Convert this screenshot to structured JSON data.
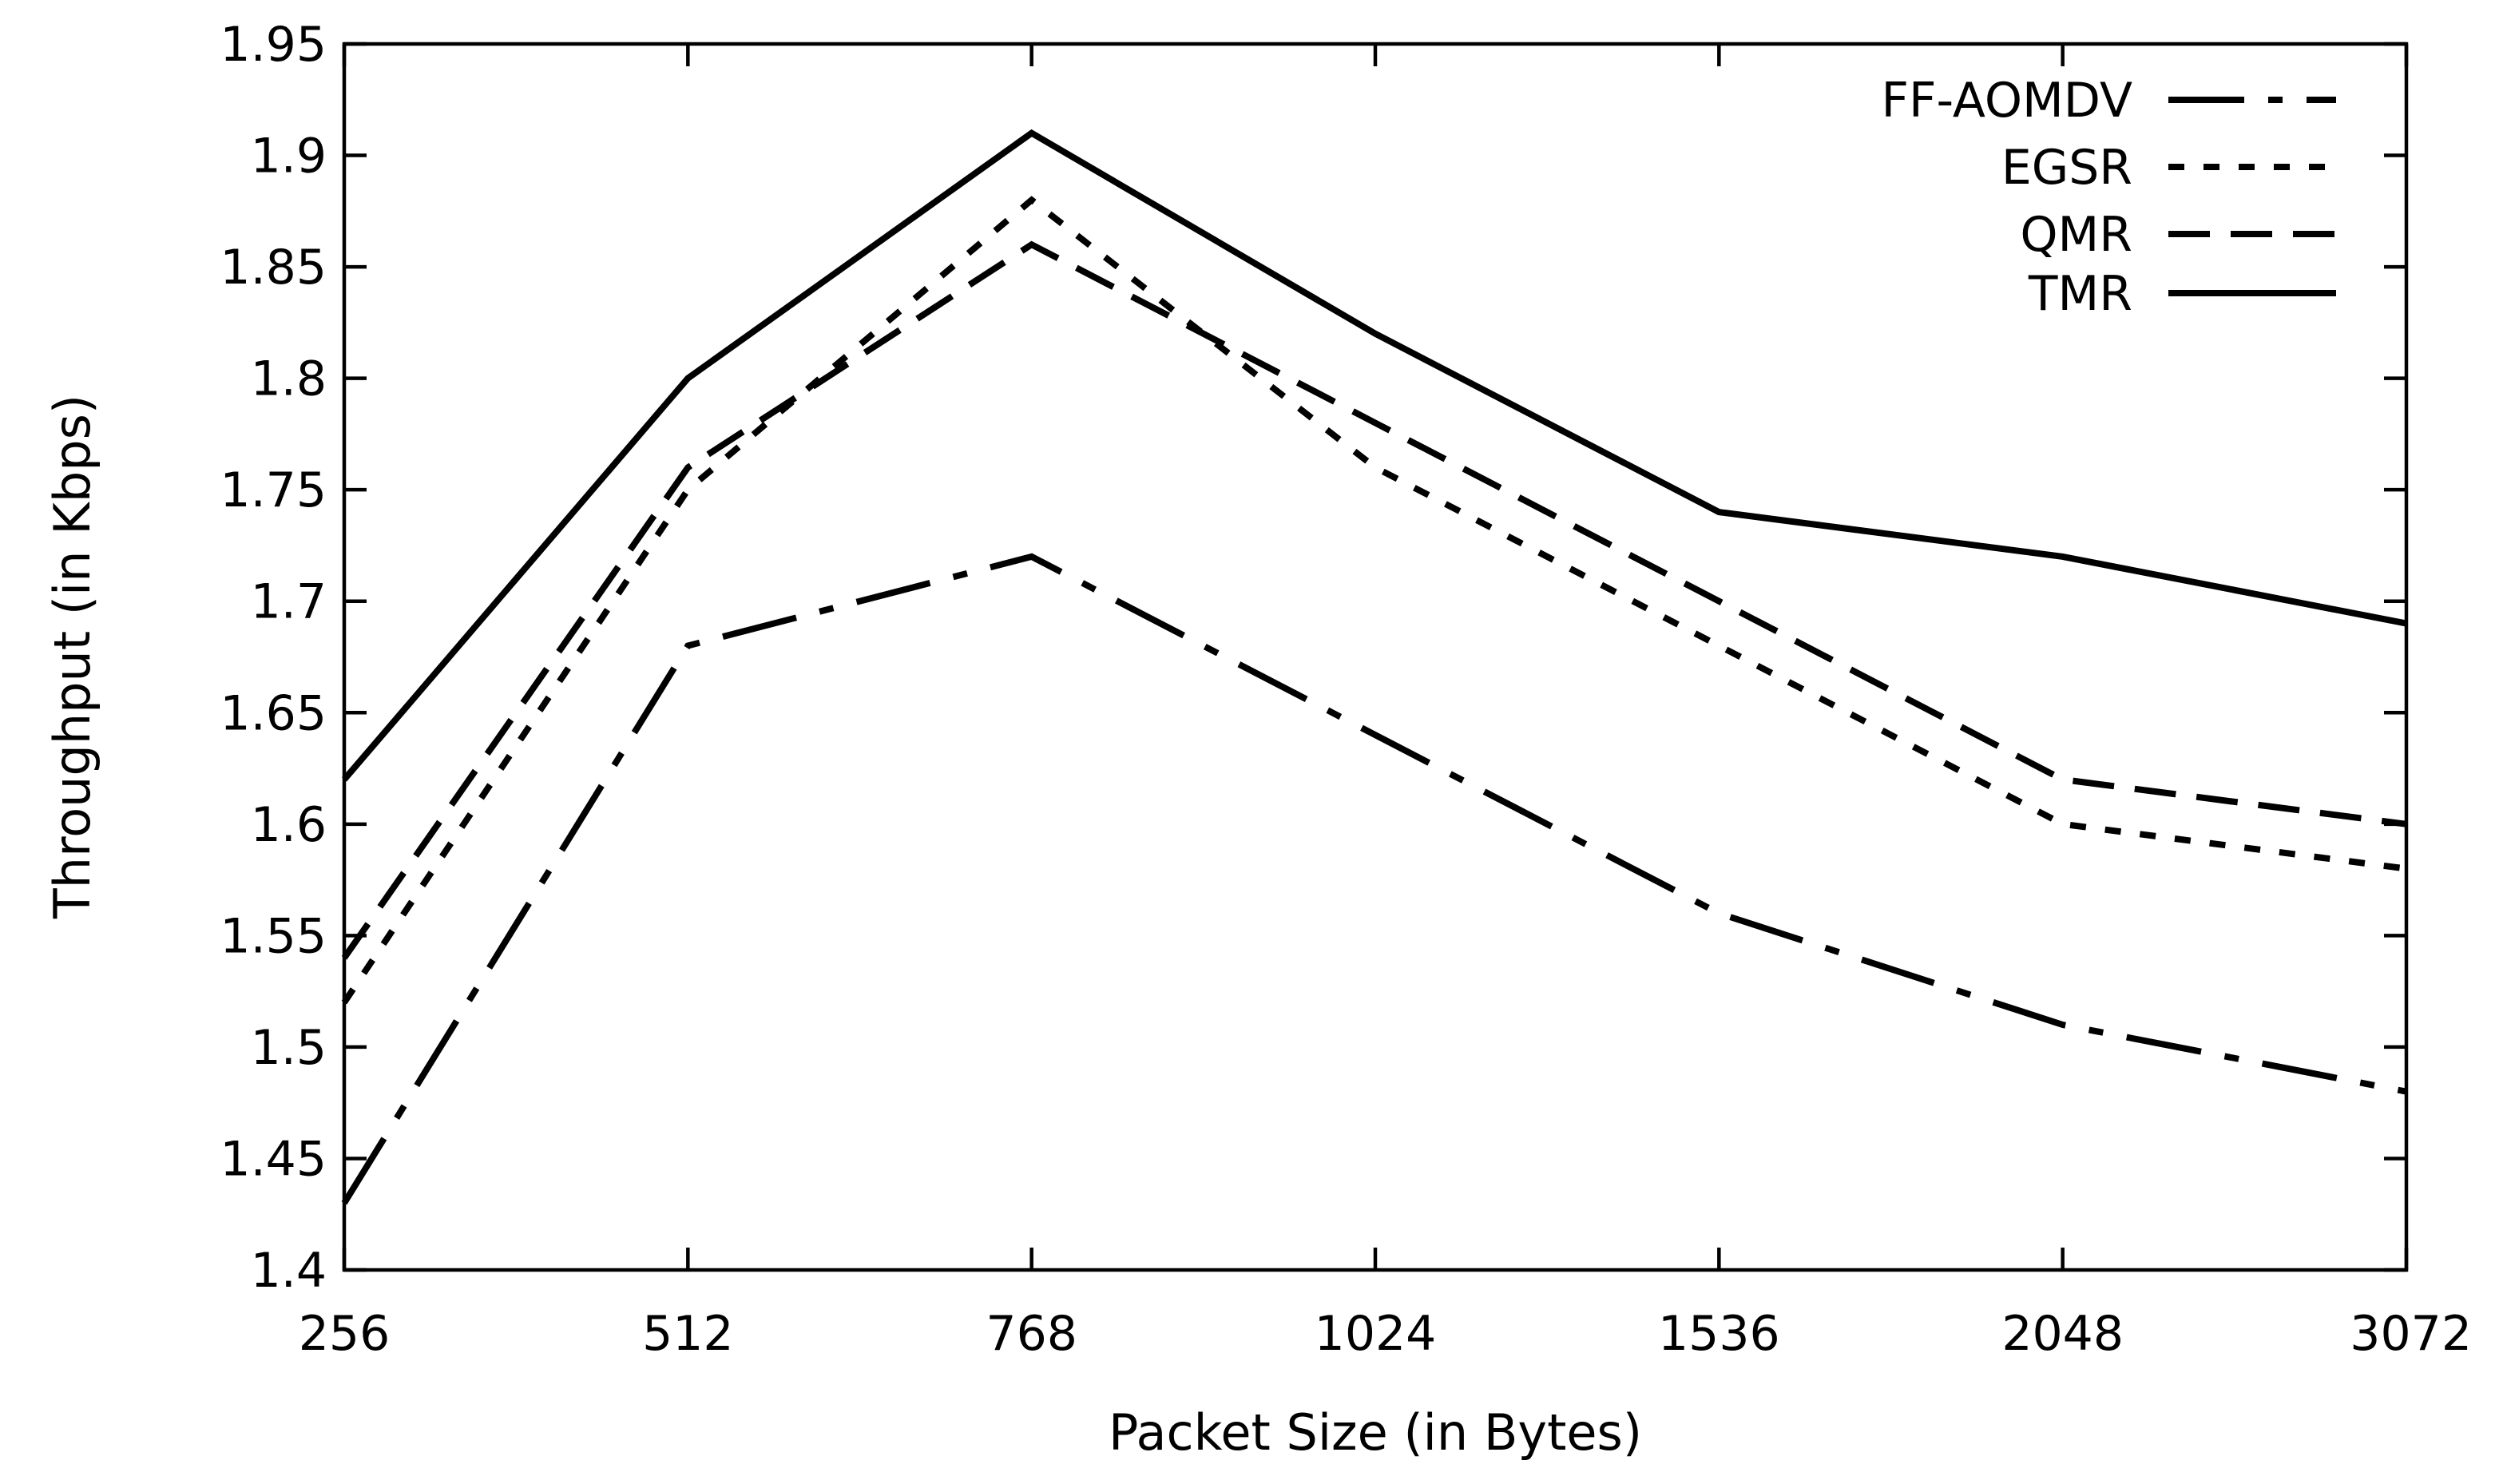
{
  "chart_data": {
    "type": "line",
    "title": "",
    "xlabel": "Packet Size (in Bytes)",
    "ylabel": "Throughput (in Kbps)",
    "categories": [
      "256",
      "512",
      "768",
      "1024",
      "1536",
      "2048",
      "3072"
    ],
    "yticks": [
      "1.4",
      "1.45",
      "1.5",
      "1.55",
      "1.6",
      "1.65",
      "1.7",
      "1.75",
      "1.8",
      "1.85",
      "1.9",
      "1.95"
    ],
    "ylim": [
      1.4,
      1.95
    ],
    "grid": false,
    "legend_position": "top-right",
    "series": [
      {
        "name": "FF-AOMDV",
        "dash": "dash-dot",
        "color": "#000000",
        "values": [
          1.43,
          1.68,
          1.72,
          1.64,
          1.56,
          1.51,
          1.48
        ]
      },
      {
        "name": "EGSR",
        "dash": "dotted",
        "color": "#000000",
        "values": [
          1.52,
          1.75,
          1.88,
          1.76,
          1.68,
          1.6,
          1.58
        ]
      },
      {
        "name": "QMR",
        "dash": "dashed",
        "color": "#000000",
        "values": [
          1.54,
          1.76,
          1.86,
          1.78,
          1.7,
          1.62,
          1.6
        ]
      },
      {
        "name": "TMR",
        "dash": "solid",
        "color": "#000000",
        "values": [
          1.62,
          1.8,
          1.91,
          1.82,
          1.74,
          1.72,
          1.69
        ]
      }
    ]
  }
}
